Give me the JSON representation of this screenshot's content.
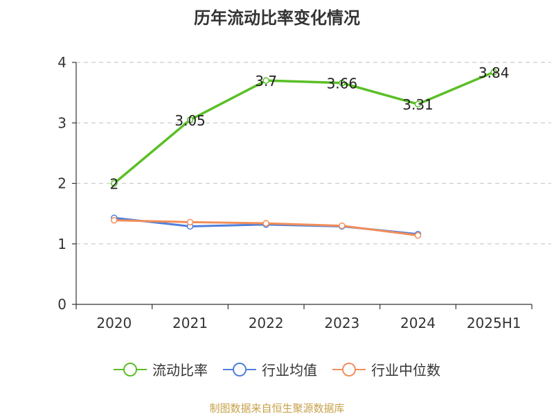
{
  "chart_data": {
    "type": "line",
    "title": "历年流动比率变化情况",
    "categories": [
      "2020",
      "2021",
      "2022",
      "2023",
      "2024",
      "2025H1"
    ],
    "ylim": [
      0,
      4
    ],
    "yticks": [
      "0",
      "1",
      "2",
      "3",
      "4"
    ],
    "grid": "horizontal dashed",
    "legend_position": "bottom",
    "series": [
      {
        "name": "流动比率",
        "color": "#5bbf26",
        "values": [
          2,
          3.05,
          3.7,
          3.66,
          3.31,
          3.84
        ],
        "labels": [
          "2",
          "3.05",
          "3.7",
          "3.66",
          "3.31",
          "3.84"
        ]
      },
      {
        "name": "行业均值",
        "color": "#4f7fda",
        "values": [
          1.43,
          1.29,
          1.32,
          1.29,
          1.16,
          null
        ]
      },
      {
        "name": "行业中位数",
        "color": "#f28e5a",
        "values": [
          1.39,
          1.36,
          1.34,
          1.3,
          1.14,
          null
        ]
      }
    ]
  },
  "footer": {
    "source": "制图数据来自恒生聚源数据库"
  }
}
